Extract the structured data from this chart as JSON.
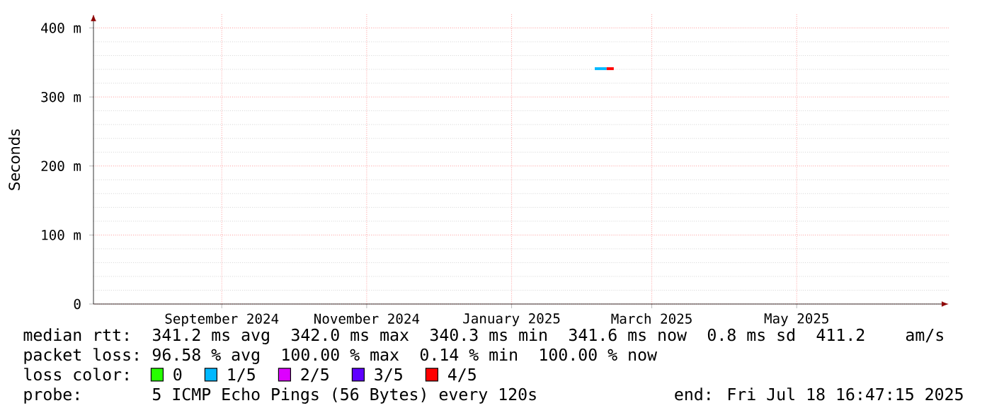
{
  "chart_data": {
    "type": "line",
    "ylabel": "Seconds",
    "legend_title": "loss color:",
    "legend": "bottom",
    "grid": true,
    "xlim": [
      "2024-07-23",
      "2025-07-18"
    ],
    "xticks": [
      {
        "value": "2024-09-15",
        "label": "September 2024"
      },
      {
        "value": "2024-11-15",
        "label": "November 2024"
      },
      {
        "value": "2025-01-15",
        "label": "January 2025"
      },
      {
        "value": "2025-03-15",
        "label": "March 2025"
      },
      {
        "value": "2025-05-15",
        "label": "May 2025"
      }
    ],
    "ylim": [
      0,
      420
    ],
    "yticks": [
      0,
      {
        "value": 100,
        "label": "100 m"
      },
      {
        "value": 200,
        "label": "200 m"
      },
      {
        "value": 300,
        "label": "300 m"
      },
      {
        "value": 400,
        "label": "400 m"
      }
    ],
    "series": [
      {
        "name": "0",
        "color": "#26ff00"
      },
      {
        "name": "1/5",
        "color": "#00b8ff",
        "x": [
          "2025-02-19",
          "2025-02-22",
          "2025-02-24"
        ],
        "values": [
          341,
          341,
          341
        ]
      },
      {
        "name": "2/5",
        "color": "#dd00ff"
      },
      {
        "name": "3/5",
        "color": "#5f00ff"
      },
      {
        "name": "4/5",
        "color": "#ff0000",
        "x": [
          "2025-02-24",
          "2025-02-27"
        ],
        "values": [
          341,
          341
        ]
      }
    ],
    "annotations": [
      "median rtt:",
      "341.2 ms avg",
      "342.0 ms max",
      "340.3 ms min",
      "341.6 ms now",
      "0.8 ms sd",
      "411.2",
      "am/s",
      "packet loss:",
      "96.58 % avg",
      "100.00 % max",
      "0.14 % min",
      "100.00 % now",
      "probe:",
      "5 ICMP Echo Pings (56 Bytes) every 120s",
      "end: Fri Jul 18 16:47:15 2025"
    ]
  }
}
